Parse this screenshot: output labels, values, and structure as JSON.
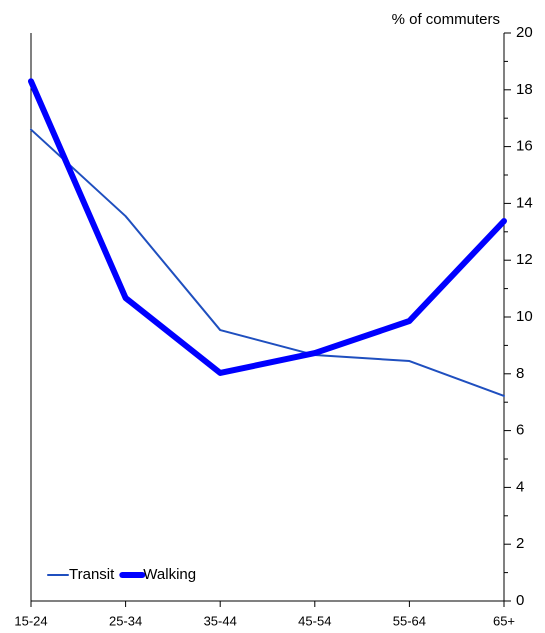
{
  "chart_data": {
    "type": "line",
    "y_axis_label": "% of commuters",
    "categories": [
      "15-24",
      "25-34",
      "35-44",
      "45-54",
      "55-64",
      "65+"
    ],
    "series": [
      {
        "name": "Transit",
        "color": "#1f4fbf",
        "width": 2,
        "values": [
          16.6,
          13.55,
          9.54,
          8.66,
          8.45,
          7.22
        ]
      },
      {
        "name": "Walking",
        "color": "#0000ff",
        "width": 6,
        "values": [
          18.3,
          10.67,
          8.03,
          8.73,
          9.86,
          13.38
        ]
      }
    ],
    "ylim": [
      0,
      20
    ],
    "yticks": [
      0,
      2,
      4,
      6,
      8,
      10,
      12,
      14,
      16,
      18,
      20
    ],
    "y_minor_ticks": [
      1,
      3,
      5,
      7,
      9,
      11,
      13,
      15,
      17,
      19
    ],
    "y_axis_side": "right",
    "legend": "lower left",
    "grid": false
  }
}
